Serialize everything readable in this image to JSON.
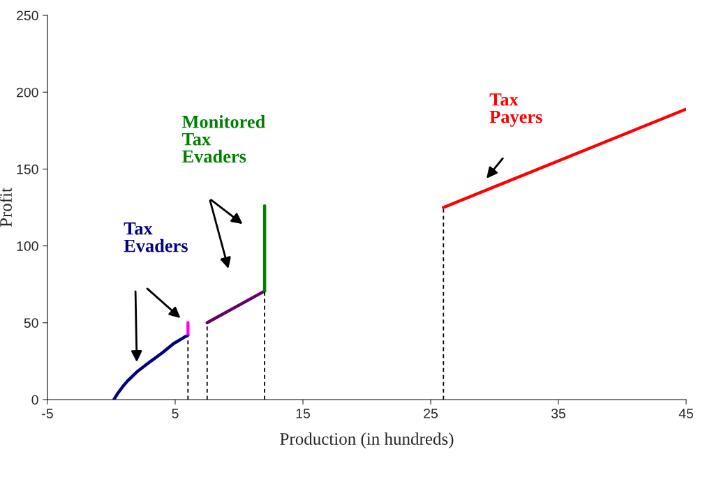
{
  "chart_data": {
    "type": "line",
    "xlabel": "Production (in hundreds)",
    "ylabel": "Profit",
    "xlim": [
      -5,
      45
    ],
    "xticks": [
      -5,
      5,
      15,
      25,
      35,
      45
    ],
    "ylim": [
      0,
      250
    ],
    "yticks": [
      0,
      50,
      100,
      150,
      200,
      250
    ],
    "grid": false,
    "legend": false,
    "marker": "none",
    "series": [
      {
        "name": "Tax Evaders",
        "color": "#000080",
        "x": [
          0.2,
          0.5,
          0.9,
          1.25,
          2,
          3.06,
          4,
          4.87,
          6
        ],
        "values": [
          0,
          4,
          8.5,
          12,
          18,
          24.8,
          30.5,
          36.4,
          42
        ]
      },
      {
        "color": "#ff00ff",
        "x": [
          6,
          6
        ],
        "values": [
          42,
          50
        ]
      },
      {
        "color": "#660066",
        "x": [
          7.5,
          12
        ],
        "values": [
          50,
          70.6
        ]
      },
      {
        "name": "Monitored Tax Evaders",
        "color": "#008000",
        "x": [
          12,
          12
        ],
        "values": [
          70.6,
          126
        ]
      },
      {
        "name": "Tax Payers",
        "color": "#ff0000",
        "x": [
          26,
          45
        ],
        "values": [
          125,
          189
        ]
      },
      {
        "color": "#000000",
        "line_style": "dashed",
        "x": [
          6,
          6
        ],
        "values": [
          0,
          42
        ]
      },
      {
        "color": "#000000",
        "line_style": "dashed",
        "x": [
          7.5,
          7.5
        ],
        "values": [
          0,
          50
        ]
      },
      {
        "color": "#000000",
        "line_style": "dashed",
        "x": [
          12,
          12
        ],
        "values": [
          0,
          70.6
        ]
      },
      {
        "color": "#000000",
        "line_style": "dashed",
        "x": [
          26,
          26
        ],
        "values": [
          0,
          125
        ]
      }
    ]
  }
}
